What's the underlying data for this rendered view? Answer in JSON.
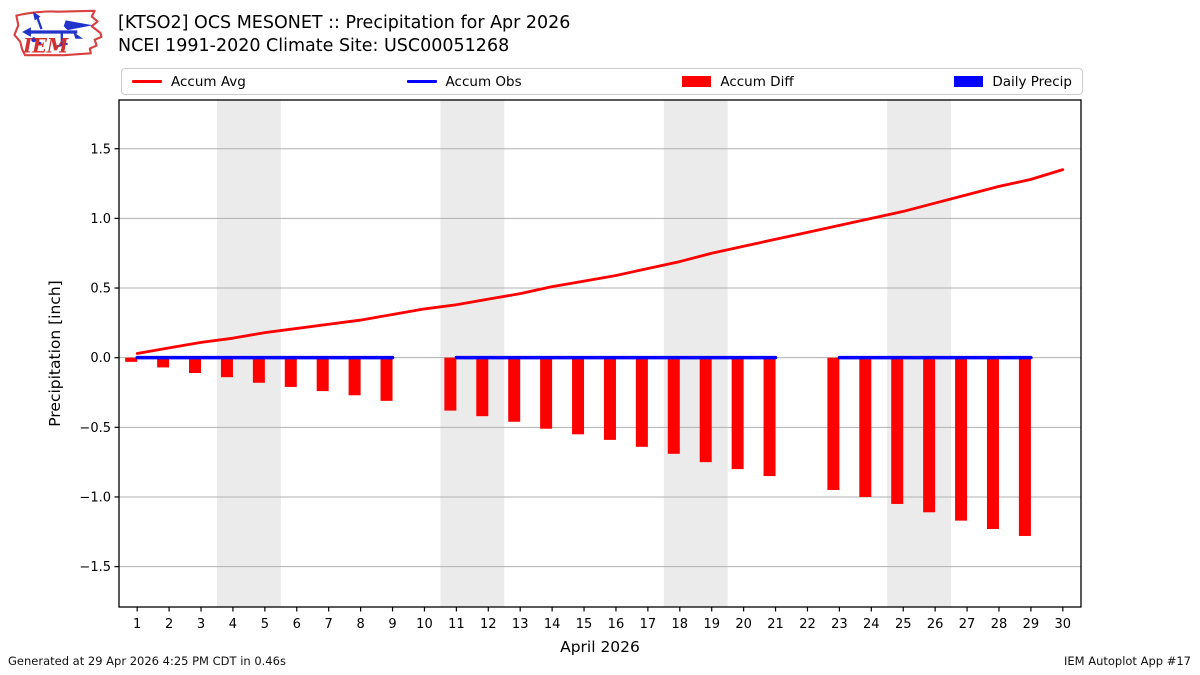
{
  "header": {
    "title_line1": "[KTSO2] OCS MESONET :: Precipitation for Apr 2026",
    "title_line2": "NCEI 1991-2020 Climate Site: USC00051268",
    "logo_text": "IEM"
  },
  "legend": [
    {
      "label": "Accum Avg",
      "swatch": "line",
      "color": "#ff0000"
    },
    {
      "label": "Accum Obs",
      "swatch": "line",
      "color": "#0000ff"
    },
    {
      "label": "Accum Diff",
      "swatch": "patch",
      "color": "#ff0000"
    },
    {
      "label": "Daily Precip",
      "swatch": "patch",
      "color": "#0000ff"
    }
  ],
  "footer": {
    "left": "Generated at 29 Apr 2026 4:25 PM CDT in 0.46s",
    "right": "IEM Autoplot App #17"
  },
  "chart_data": {
    "type": "bar",
    "title": "[KTSO2] OCS MESONET :: Precipitation for Apr 2026",
    "subtitle": "NCEI 1991-2020 Climate Site: USC00051268",
    "xlabel": "April 2026",
    "ylabel": "Precipitation [inch]",
    "ylim": [
      -1.79,
      1.85
    ],
    "xlim_days": [
      0.43,
      30.57
    ],
    "yticks": [
      -1.5,
      -1.0,
      -0.5,
      0.0,
      0.5,
      1.0,
      1.5
    ],
    "ytick_labels": [
      "−1.5",
      "−1.0",
      "−0.5",
      "0.0",
      "0.5",
      "1.0",
      "1.5"
    ],
    "grid": "horizontal",
    "grid_color": "#b0b0b0",
    "band_color": "#ebebeb",
    "legend_position": "top",
    "days": [
      1,
      2,
      3,
      4,
      5,
      6,
      7,
      8,
      9,
      10,
      11,
      12,
      13,
      14,
      15,
      16,
      17,
      18,
      19,
      20,
      21,
      22,
      23,
      24,
      25,
      26,
      27,
      28,
      29,
      30
    ],
    "weekend_bands": [
      [
        3.5,
        5.5
      ],
      [
        10.5,
        12.5
      ],
      [
        17.5,
        19.5
      ],
      [
        24.5,
        26.5
      ]
    ],
    "series": [
      {
        "name": "Accum Avg",
        "type": "line",
        "color": "#ff0000",
        "values": [
          0.03,
          0.07,
          0.11,
          0.14,
          0.18,
          0.21,
          0.24,
          0.27,
          0.31,
          0.35,
          0.38,
          0.42,
          0.46,
          0.51,
          0.55,
          0.59,
          0.64,
          0.69,
          0.75,
          0.8,
          0.85,
          0.9,
          0.95,
          1.0,
          1.05,
          1.11,
          1.17,
          1.23,
          1.28,
          1.35
        ]
      },
      {
        "name": "Accum Obs",
        "type": "line",
        "color": "#0000ff",
        "values": [
          0,
          0,
          0,
          0,
          0,
          0,
          0,
          0,
          0,
          null,
          0,
          0,
          0,
          0,
          0,
          0,
          0,
          0,
          0,
          0,
          0,
          null,
          0,
          0,
          0,
          0,
          0,
          0,
          0,
          null
        ]
      },
      {
        "name": "Accum Diff",
        "type": "bar",
        "color": "#ff0000",
        "values": [
          -0.03,
          -0.07,
          -0.11,
          -0.14,
          -0.18,
          -0.21,
          -0.24,
          -0.27,
          -0.31,
          null,
          -0.38,
          -0.42,
          -0.46,
          -0.51,
          -0.55,
          -0.59,
          -0.64,
          -0.69,
          -0.75,
          -0.8,
          -0.85,
          null,
          -0.95,
          -1.0,
          -1.05,
          -1.11,
          -1.17,
          -1.23,
          -1.28,
          null
        ]
      },
      {
        "name": "Daily Precip",
        "type": "bar",
        "color": "#0000ff",
        "values": [
          0,
          0,
          0,
          0,
          0,
          0,
          0,
          0,
          0,
          null,
          0,
          0,
          0,
          0,
          0,
          0,
          0,
          0,
          0,
          0,
          0,
          null,
          0,
          0,
          0,
          0,
          0,
          0,
          0,
          null
        ]
      }
    ]
  }
}
